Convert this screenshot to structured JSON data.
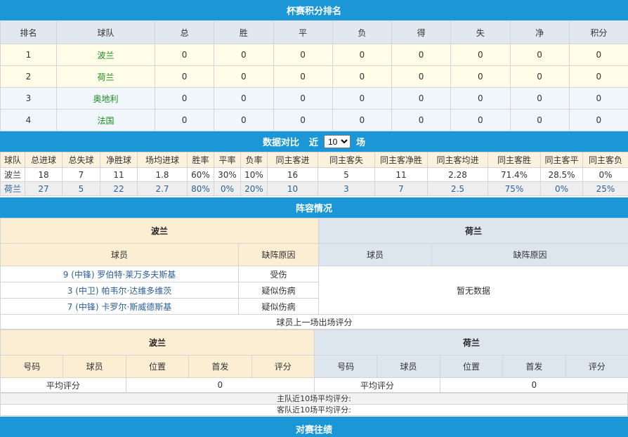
{
  "standings": {
    "title": "杯赛积分排名",
    "headers": [
      "排名",
      "球队",
      "总",
      "胜",
      "平",
      "负",
      "得",
      "失",
      "净",
      "积分"
    ],
    "rows": [
      [
        "1",
        "波兰",
        "0",
        "0",
        "0",
        "0",
        "0",
        "0",
        "0",
        "0"
      ],
      [
        "2",
        "荷兰",
        "0",
        "0",
        "0",
        "0",
        "0",
        "0",
        "0",
        "0"
      ],
      [
        "3",
        "奥地利",
        "0",
        "0",
        "0",
        "0",
        "0",
        "0",
        "0",
        "0"
      ],
      [
        "4",
        "法国",
        "0",
        "0",
        "0",
        "0",
        "0",
        "0",
        "0",
        "0"
      ]
    ]
  },
  "compare": {
    "title": "数据对比",
    "near_label": "近",
    "matches_selected": "10",
    "unit_label": "场",
    "headers": [
      "球队",
      "总进球",
      "总失球",
      "净胜球",
      "场均进球",
      "胜率",
      "平率",
      "负率",
      "同主客进",
      "同主客失",
      "同主客净胜",
      "同主客均进",
      "同主客胜",
      "同主客平",
      "同主客负"
    ],
    "rows": [
      [
        "波兰",
        "18",
        "7",
        "11",
        "1.8",
        "60%",
        "30%",
        "10%",
        "16",
        "5",
        "11",
        "2.28",
        "71.4%",
        "28.5%",
        "0%"
      ],
      [
        "荷兰",
        "27",
        "5",
        "22",
        "2.7",
        "80%",
        "0%",
        "20%",
        "10",
        "3",
        "7",
        "2.5",
        "75%",
        "0%",
        "25%"
      ]
    ]
  },
  "lineup": {
    "title": "阵容情况",
    "home": "波兰",
    "away": "荷兰",
    "col_player": "球员",
    "col_reason": "缺阵原因",
    "home_absent": [
      {
        "player": "9 (中锋) 罗伯特·莱万多夫斯基",
        "reason": "受伤"
      },
      {
        "player": "3 (中卫) 帕韦尔·达维多维茨",
        "reason": "疑似伤病"
      },
      {
        "player": "7 (中锋) 卡罗尔·斯威德斯基",
        "reason": "疑似伤病"
      }
    ],
    "away_empty": "暂无数据"
  },
  "ratings": {
    "title": "球员上一场出场评分",
    "home": "波兰",
    "away": "荷兰",
    "headers": [
      "号码",
      "球员",
      "位置",
      "首发",
      "评分"
    ],
    "avg_label": "平均评分",
    "home_avg": "0",
    "away_avg": "0",
    "home_recent": "主队近10场平均评分:",
    "away_recent": "客队近10场平均评分:"
  },
  "next_section": "对赛往绩",
  "colors": {
    "header_blue": "#1b96d6",
    "team_green": "#1e8a1e",
    "home_beige": "#fbeed3",
    "away_gray": "#dde6ee"
  }
}
